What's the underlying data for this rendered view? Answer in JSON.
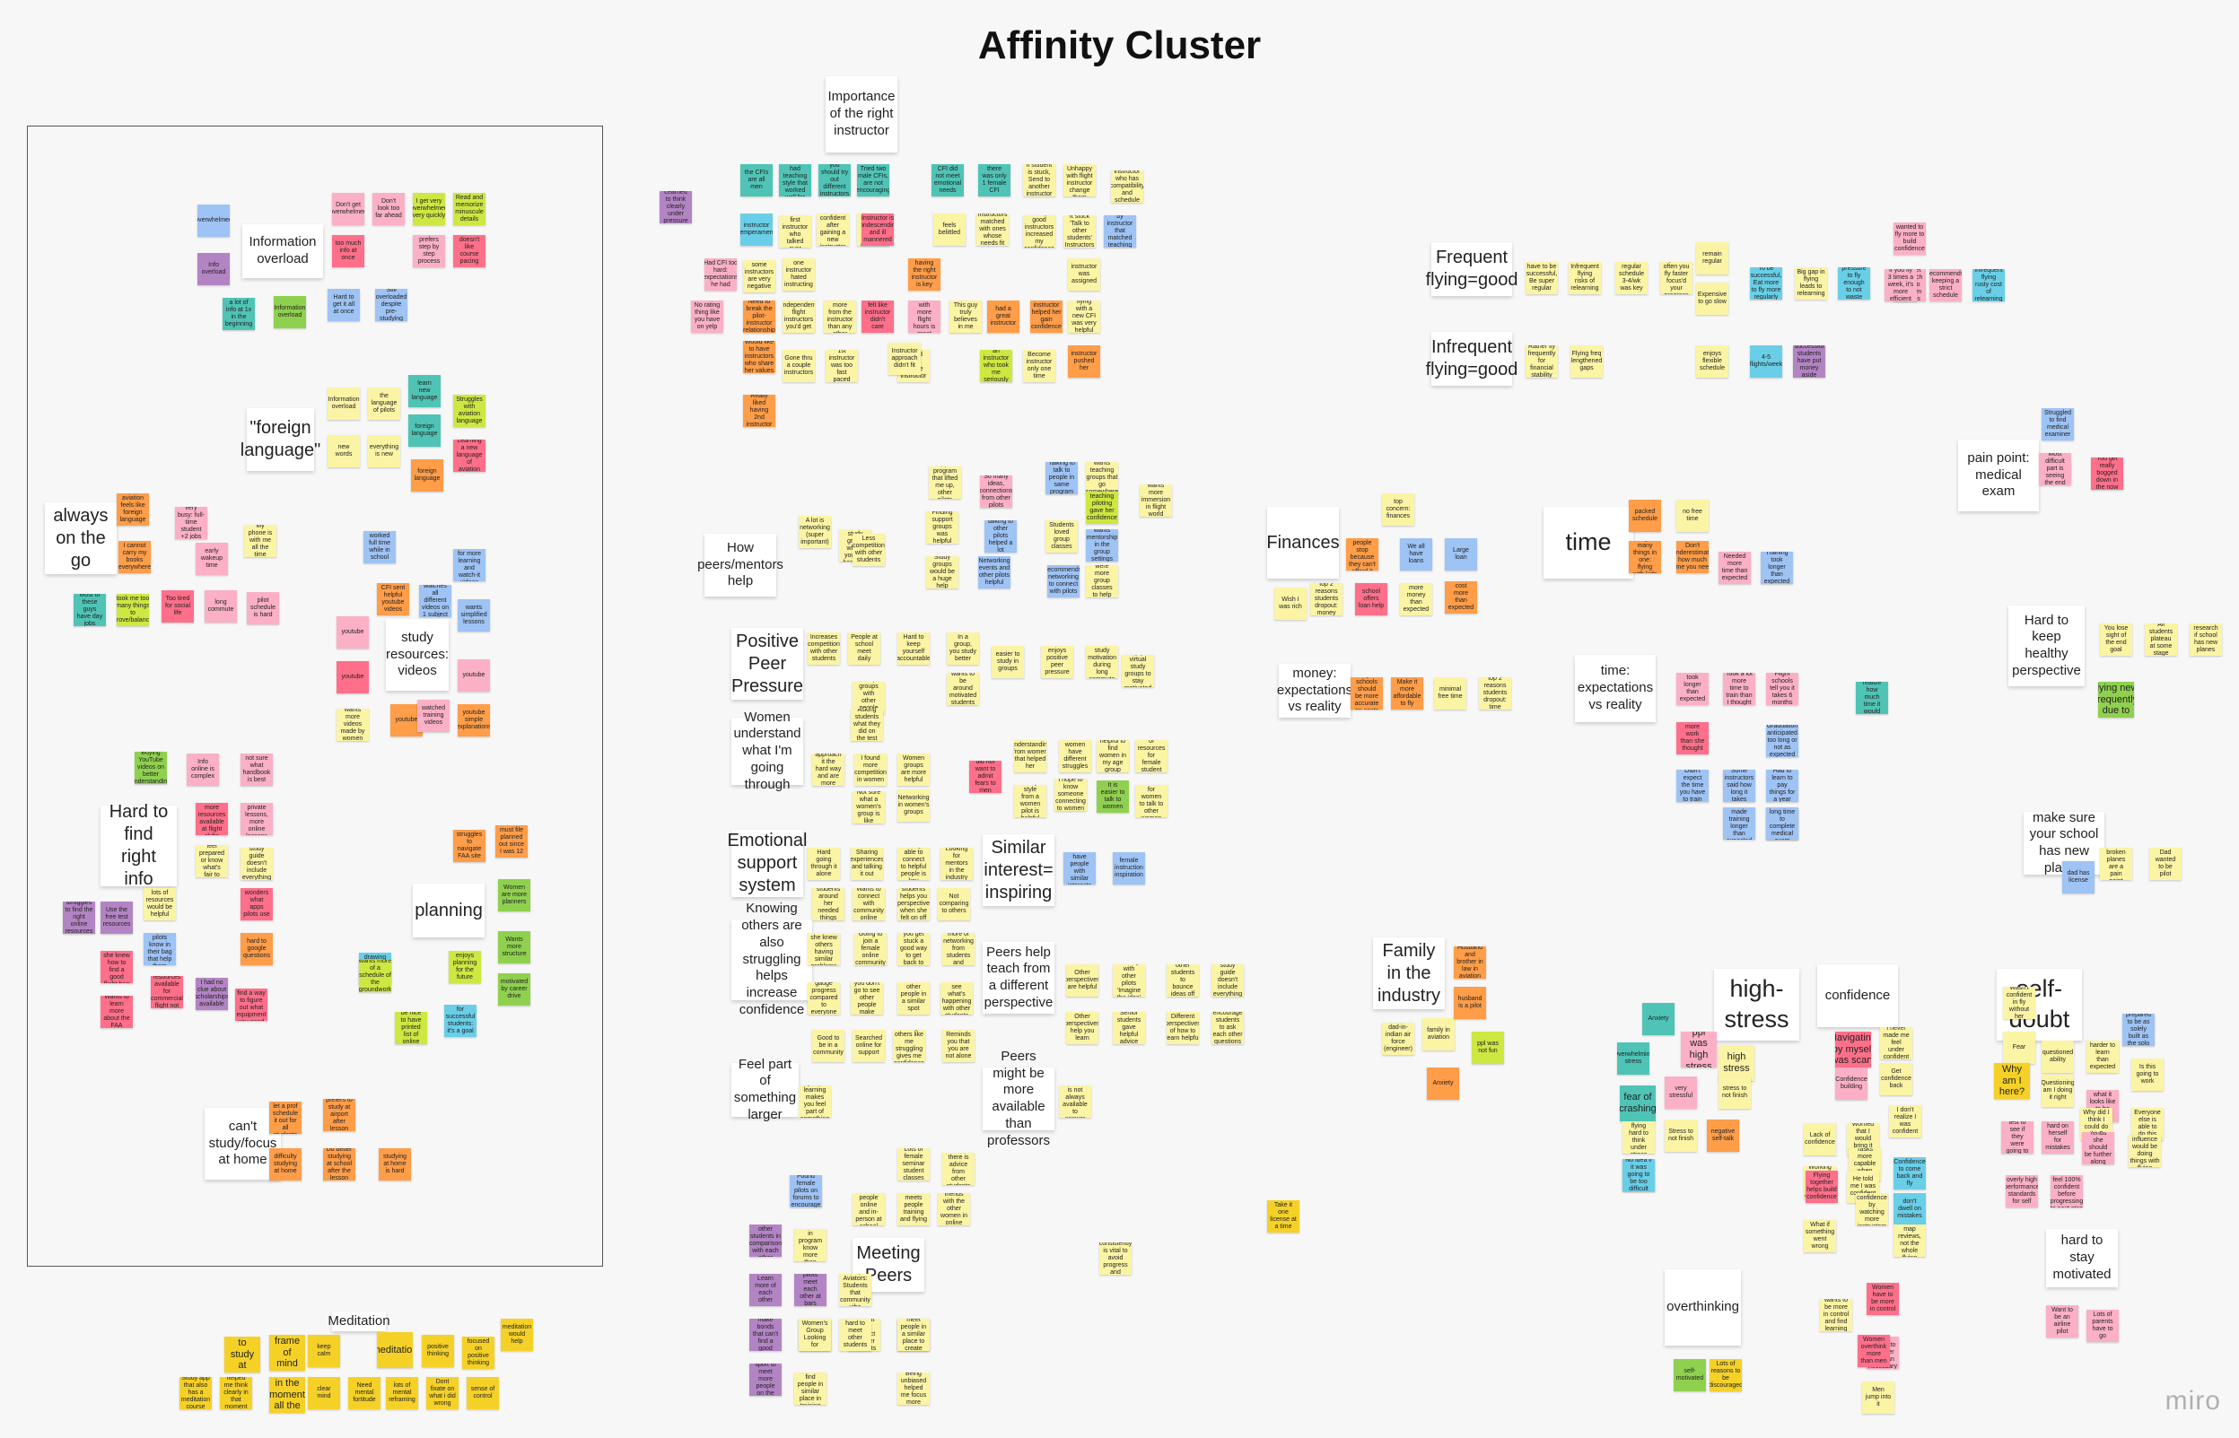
{
  "title": "Affinity Cluster",
  "logo": "miro",
  "colors": {
    "Y": "#f5d128",
    "L": "#fbf4a4",
    "O": "#ff9d48",
    "P": "#ff6f8a",
    "K": "#fbb0c6",
    "V": "#b384c4",
    "B": "#9ec3f5",
    "C": "#69cfe8",
    "T": "#4fc4b6",
    "G": "#cee741",
    "M": "#8fd14f",
    "R": "#f24726"
  },
  "headers": [
    "Information overload",
    "\"foreign language\"",
    "always on the go",
    "study resources: videos",
    "Hard to find right info",
    "planning",
    "can't study/focus at home",
    "Meditation",
    "Importance of the right instructor",
    "How peers/mentors help",
    "Positive Peer Pressure",
    "Women understand what I'm going through",
    "Emotional support system",
    "Knowing others are also struggling helps increase confidence",
    "Similar interest= inspiring",
    "Peers help teach from a different perspective",
    "Feel part of something larger",
    "Peers might be more available than professors",
    "Meeting Peers",
    "Frequent flying=good",
    "Infrequent flying=good",
    "Finances",
    "money: expectations vs reality",
    "time",
    "time: expectations vs reality",
    "pain point: medical exam",
    "Hard to keep healthy perspective",
    "make sure your school has new planes",
    "Family in the industry",
    "high-stress",
    "confidence",
    "self-doubt",
    "overthinking",
    "hard to stay motivated"
  ],
  "notes": [
    "overwhelmed",
    "Info overload",
    "a lot of info at 1x in the beginning",
    "Don't get overwhelmed",
    "Don't look too far ahead",
    "too much info at once",
    "Hard to get it all at once",
    "I get very overwhelmed very quickly",
    "prefers step by step process",
    "doesn't like course pacing",
    "Read and memorize minuscule details",
    "Information overload",
    "Still overloaded despite pre-studying",
    "Information overload",
    "the language of pilots",
    "new words",
    "everything is new",
    "learn new language",
    "foreign language",
    "Struggles with aviation language",
    "foreign language",
    "Learning a new language of aviation",
    "aviation feels like foreign language",
    "very busy: full-time student +2 jobs",
    "I cannot carry my books everywhere",
    "early wakeup time",
    "My phone is with me all the time",
    "Most of these guys have day jobs",
    "took me too many things to prove/balance",
    "Too tired for social life",
    "long commute",
    "pilot schedule is hard",
    "worked full time while in school",
    "Guidance for more learning and watch-it videos",
    "CFI sent helpful youtube videos",
    "watches all different videos on 1 subject",
    "youtube",
    "wants simplified lessons",
    "youtube",
    "youtube",
    "wants more videos made by women",
    "youtube",
    "watched training videos",
    "youtube simple explanations",
    "Buying YouTube videos on better understanding",
    "Info online is complex",
    "wants more resources available at flight clubs",
    "not sure what handbook is best",
    "No private lessons, more online lessons",
    "Doesn't feel prepared or know what's fair to test",
    "study guide doesn't include everything",
    "lots of resources would be helpful",
    "wonders what apps pilots use",
    "struggles to find the right online resources",
    "Use the free test resources",
    "What do pilots know in their bag that help them",
    "hard to google questions",
    "wishes she knew how to find a good flight bag",
    "Online resources available for commercial flight not private",
    "I had no clue about scholarships available",
    "Wants to learn more about the FAA",
    "Had to find a way to figure out what equipment you need",
    "struggles to navigate FAA site",
    "must file planned out since I was 12",
    "Women are more planners",
    "Wants more structure",
    "wanted to learn drawing and mission want to come in order",
    "enjoys planning for the future",
    "motivated by career drive",
    "wants more of a schedule of the groundwork",
    "It would be nice to have printed list of online course",
    "for successful students: it's a goal",
    "Instead, let a prof schedule it out for all students",
    "prefers to study at airport after lesson",
    "difficulty studying at home",
    "Do better studying at school after the lesson",
    "studying at home is hard",
    "hard to study at home",
    "frame of mind",
    "keep calm",
    "meditation",
    "positive thinking",
    "focused on positive thinking",
    "meditation would help",
    "Study app that also has a meditation course",
    "helped me think clearly in that moment",
    "Being in the moment all the time",
    "clear mind",
    "Need mental fortitude",
    "lots of mental reframing",
    "Dont fixate on what i did wrong",
    "sense of control",
    "Learned to think clearly under pressure",
    "the CFIs are all men",
    "Female instructor had teaching style that worked well for her",
    "you should try out different instructors",
    "Tried two male CFIs, are not encouraging",
    "CFI did not meet emotional needs",
    "there was only 1 female CFI",
    "if student is stuck, Send to another instructor",
    "if Unhappy with flight instructor change them",
    "instructor who has compatibility and schedule",
    "instructor temperament",
    "Had a first instructor who talked over",
    "Felt more confident after gaining a new instructor",
    "You have no idea what to look for in an instructor",
    "Instructor is condescending and ill mannered",
    "feels belittled",
    "Instructors matched with ones whose needs fit",
    "Really good instructors increased my confidence",
    "It stuck 'Talk to other students' Instructors",
    "Taught by instructor that matched teaching style",
    "Had CFI too hard: expectations he had",
    "some instructors are very negative",
    "one instructor hated instructing",
    "having the right instructor is key",
    "instructor was assigned",
    "No rating thing like you have on yelp",
    "Need to break the pilot-instructor relationship",
    "Independent flight instructors you'd get",
    "I learned more from the instructor than any other",
    "felt like instructor didn't care",
    "Instructor with more flight hours is great",
    "This guy truly believes in me",
    "had a great instructor",
    "instructor helped her gain confidence",
    "flying with a new CFI was very helpful",
    "Would like to have instructors who share her values",
    "Gone thru a couple instructors",
    "1st instructor was too fast paced",
    "Would like a female instructor",
    "an instructor who took me seriously",
    "Become instructor only one time",
    "instructor pushed her",
    "Really liked having 2nd instructor",
    "Instructor approach didn't fit",
    "A lot is networking (super important)",
    "wants a study group where you just hang out",
    "support program that lifted me up, other pilots",
    "So many ideas, connections from other pilots",
    "Finding support groups was helpful",
    "talking to other pilots helped a lot",
    "Study groups would be a huge help",
    "Networking events and other pilots helpful",
    "Talking to talk to people in same program",
    "wants teaching groups that go somewhere",
    "Students loved group classes",
    "wants mentorship in the group settings",
    "teaching piloting gave her confidence",
    "wants more immersion in flight world",
    "Less competition with other students",
    "recommends networking to connect with pilots",
    "wishes there were more group classes to help with lessons",
    "Increases competition with other students",
    "People at school meet daily",
    "Hard to keep yourself accountable",
    "In a group, you study better",
    "Want study groups with other people when she is ready",
    "wants to be around motivated students",
    "easier to study in groups",
    "enjoys positive peer pressure",
    "finds study motivation during long commute",
    "enjoys virtual study groups to stay motivated",
    "Asking students what they did on the test",
    "Women approach it the hard way and are more serious",
    "I found more competition in women",
    "Women groups are more helpful",
    "Networking in women's groups",
    "Not sure what a women's group is like",
    "did not want to admit fears to men",
    "Understanding from women that helped her",
    "women have different struggles",
    "helpful to find women in my age group",
    "Get a lot of resources for female student pilots",
    "Seeing a style from a women pilot is helpful",
    "I hope to know someone connecting to women",
    "It is easier to talk to women",
    "It's easier for women to talk to other women",
    "Hard going through it alone",
    "Sharing experiences and talking it out",
    "being able to connect to helpful people is key",
    "Seminar students around her needed things answered",
    "Wants to connect with community online",
    "Other students helps you perspective when she felt on off day",
    "wishes she knew others having similar problems",
    "Like if you get stuck a good way to get back to stuff",
    "looks more of networking from students and women",
    "Going to join a female online community",
    "hard to gauge progress compared to everyone else",
    "I'm flying, you don't go to see other people make mistakes",
    "other people in a similar spot",
    "Like to see what's happening with other students",
    "seeing others like me struggling gives me confidence",
    "Reminds you that you are not alone",
    "Searched online for support",
    "Good to be in a community",
    "Not comparing to others",
    "Looking for mentors in the industry",
    "easier to have people with similar interests",
    "female instruction inspiration",
    "Other perspectives are helpful",
    "Talking with other pilots 'Imagine the idea'",
    "Lack of other students to bounce ideas off of",
    "study guide doesn't include everything",
    "Other perspectives help you learn",
    "Senior students gave helpful advice",
    "Different perspectives of how to learn helpful",
    "encourage students to ask each other questions",
    "group learning makes you feel part of something",
    "Instructor is not always available to answer",
    "Found female pilots on forums to encourage",
    "Lots of female seminar student classes",
    "Like there is advice from other students",
    "meets people online and in-person at school",
    "meets people training and flying",
    "Saw friends with the other women in online program",
    "Talk with other students in comparison with each other",
    "Other students in program know more than others",
    "Learn more of each other",
    "pilots meet each other at bars",
    "easier to meet other students",
    "Lady Aviators: Students that community vibe",
    "Women's Group Looking for",
    "Difficult to connect to other students",
    "Other women in the same field",
    "Women make bonds that can't find a good match",
    "hard to meet other students",
    "wants to meet people in a similar place to create community",
    "Try to get 5 in the sport to meet more people on the same path",
    "wants to find people in similar place in training",
    "Being unbiased helped me focus more",
    "Take it one license at a time",
    "Flying consistently is vital to avoid progress and recover",
    "have to be successful, Be super regular",
    "Infrequent flying risks of relearning",
    "regular schedule 3-4/wk was key",
    "Fly more often you fly faster focus'd your progress",
    "wanted to fly more to build confidence",
    "Don't let too much time go between lessons",
    "remain regular",
    "Expensive to go slow",
    "To be successful, Eat more to fly more regularly",
    "Big gap in flying leads to relearning",
    "I felt pressure to fly enough to not waste time",
    "If you fly 3 times a week, it's more efficient",
    "recommends keeping a strict schedule",
    "Infrequent flying rusty cost of relearning",
    "Rather fly frequently for financial stability",
    "Flying freq lengthened gaps",
    "enjoys flexible schedule",
    "4-5 flights/week",
    "successful students have put money aside",
    "top concern: finances",
    "A lot of people stop because they can't afford it",
    "We all have loans",
    "Large loan",
    "Wish I was rich",
    "top 2 reasons students dropout: money",
    "school offers loan help",
    "more money than expected",
    "cost more than expected",
    "Flight schools should be more accurate on costs",
    "Make it more affordable to fly",
    "minimal free time",
    "top 2 reasons students dropout: time",
    "packed schedule",
    "no free time",
    "Doing too many things in one: flying with kids",
    "Don't underestimate how much time you need",
    "Needed more time than expected",
    "Training took longer than expected",
    "took longer than expected",
    "Took a lot more time to train than I thought",
    "Flight schools tell you it takes 6 months",
    "more work than she thought",
    "Graduation anticipated too long or not as expected",
    "Didn't realize how much time it would take",
    "Didn't expect the time you have to train",
    "Some instructors said how long it takes",
    "Had to learn to pay things for a year",
    "Could made training longer than expected",
    "medical took a long time to get",
    "Took a long time to complete medical exam",
    "Struggled to find medical examiner",
    "Most difficult part is seeing the end",
    "You get really bogged down in the now",
    "You lose sight of the end goal",
    "All students plateau at some stage",
    "research if school has new planes",
    "Unfamiliar flying new frequently due to maintenance",
    "old, broken planes are a pain point",
    "Dad wanted to be pilot",
    "dad has license",
    "Husband and brother in law in aviation",
    "dad-in-indian air force (engineer)",
    "family in aviation",
    "husband is a pilot",
    "ppl was not fun",
    "Anxiety",
    "Anxiety",
    "ppl was high stress",
    "high stress",
    "Overwhelming stress",
    "fear of crashing",
    "very stressful",
    "stress to not finish",
    "stress flying hard to think under stress",
    "Tends the quitting when it is stressful",
    "Stress to not finish",
    "negative self-talk",
    "No idea if it was going to be too difficult",
    "Navigating by myself was scary",
    "I never made me feel under confident",
    "Get confidence back",
    "Confidence building",
    "Lack of confidence",
    "Worried that I would bring it up",
    "I don't realize I was confident",
    "Tasks more capable when confident",
    "Working with instructors helped confidence",
    "Flying together helps build confidence",
    "He told me I was confident",
    "Confidence to come back and fly",
    "Gained confidence by watching more instructors",
    "don't dwell on mistakes",
    "What if something went wrong",
    "Lack the map reviews, not the whole flying",
    "Wasn't confident in fly without her",
    "Fear",
    "questioned ability",
    "Why am I here?",
    "Questioning am I doing it right",
    "No idea what it looks like to be doing well",
    "Wasn't prepared to be as solely built as the solo test",
    "Is this going to work",
    "harder to learn than expected",
    "Why did I think I could do this?",
    "Everyone else is able to do this",
    "hard on herself for mistakes",
    "Tends she should be further along",
    "Perspective influence would be doing things with flying",
    "Ran a test to see if they were going to stop",
    "overly high performance standards for self",
    "wants to feel 100% confident before progressing to next step",
    "wants to be more in control and find learning",
    "Women have to be more in control",
    "Hold herself to a higher bar than necessary",
    "Women overthink more than men",
    "Men jump into it",
    "self-motivated",
    "Lots of reasons to be discouraged",
    "Want to be an airline pilot",
    "Lots of parents have to go"
  ]
}
